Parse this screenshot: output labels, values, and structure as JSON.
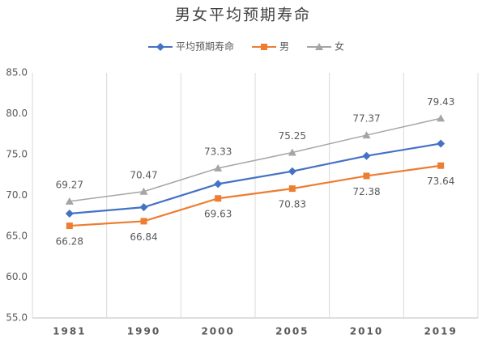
{
  "chart_data": {
    "type": "line",
    "title": "男女平均预期寿命",
    "categories": [
      "1981",
      "1990",
      "2000",
      "2005",
      "2010",
      "2019"
    ],
    "series": [
      {
        "name": "平均预期寿命",
        "color": "#4472c4",
        "marker": "diamond",
        "data_labels": "none",
        "values": [
          67.77,
          68.55,
          71.4,
          72.95,
          74.83,
          76.34
        ]
      },
      {
        "name": "男",
        "color": "#ed7d31",
        "marker": "square",
        "data_labels": "below",
        "values": [
          66.28,
          66.84,
          69.63,
          70.83,
          72.38,
          73.64
        ]
      },
      {
        "name": "女",
        "color": "#a5a5a5",
        "marker": "triangle",
        "data_labels": "above",
        "values": [
          69.27,
          70.47,
          73.33,
          75.25,
          77.37,
          79.43
        ]
      }
    ],
    "ylim": [
      55,
      85
    ],
    "yticks": [
      {
        "value": 55,
        "label": "55.0"
      },
      {
        "value": 60,
        "label": "60.0"
      },
      {
        "value": 65,
        "label": "65.0"
      },
      {
        "value": 70,
        "label": "70.0"
      },
      {
        "value": 75,
        "label": "75.0"
      },
      {
        "value": 80,
        "label": "80.0"
      },
      {
        "value": 85,
        "label": "85.0"
      }
    ],
    "legend": "top",
    "grid": "vertical"
  }
}
